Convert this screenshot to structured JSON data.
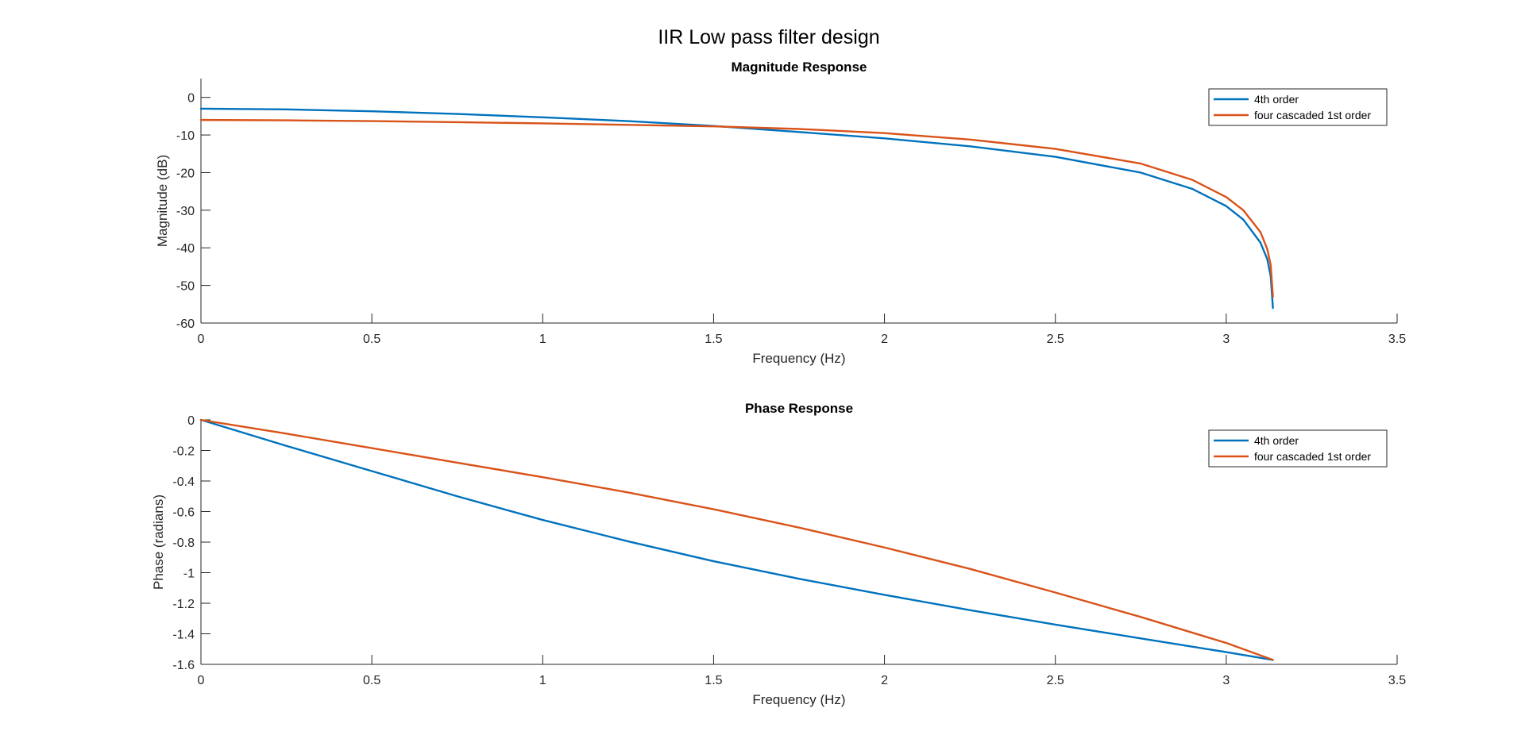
{
  "figure": {
    "title": "IIR Low pass filter design"
  },
  "colors": {
    "series1": "#0072BD",
    "series2": "#D95319"
  },
  "chart_data": [
    {
      "type": "line",
      "title": "Magnitude Response",
      "xlabel": "Frequency (Hz)",
      "ylabel": "Magnitude (dB)",
      "xlim": [
        0,
        3.5
      ],
      "ylim": [
        -60,
        5
      ],
      "xticks": [
        0,
        0.5,
        1,
        1.5,
        2,
        2.5,
        3,
        3.5
      ],
      "xtick_labels": [
        "0",
        "0.5",
        "1",
        "1.5",
        "2",
        "2.5",
        "3",
        "3.5"
      ],
      "yticks": [
        0,
        -10,
        -20,
        -30,
        -40,
        -50,
        -60
      ],
      "ytick_labels": [
        "0",
        "-10",
        "-20",
        "-30",
        "-40",
        "-50",
        "-60"
      ],
      "grid": false,
      "legend": "top-right",
      "series": [
        {
          "name": "4th order",
          "color": "#0072BD",
          "x": [
            0,
            0.25,
            0.5,
            0.75,
            1.0,
            1.25,
            1.5,
            1.75,
            2.0,
            2.25,
            2.5,
            2.75,
            2.9,
            3.0,
            3.05,
            3.1,
            3.12,
            3.13,
            3.1366
          ],
          "y": [
            -3.0,
            -3.2,
            -3.7,
            -4.4,
            -5.3,
            -6.3,
            -7.6,
            -9.2,
            -10.9,
            -13.0,
            -15.8,
            -20.0,
            -24.3,
            -28.9,
            -32.5,
            -38.6,
            -43.0,
            -47.5,
            -56.0
          ]
        },
        {
          "name": "four cascaded 1st order",
          "color": "#D95319",
          "x": [
            0,
            0.25,
            0.5,
            0.75,
            1.0,
            1.25,
            1.5,
            1.75,
            2.0,
            2.25,
            2.5,
            2.75,
            2.9,
            3.0,
            3.05,
            3.1,
            3.12,
            3.13,
            3.1366
          ],
          "y": [
            -6.0,
            -6.1,
            -6.3,
            -6.6,
            -6.9,
            -7.3,
            -7.7,
            -8.4,
            -9.5,
            -11.2,
            -13.7,
            -17.6,
            -21.9,
            -26.5,
            -30.0,
            -35.8,
            -40.3,
            -44.5,
            -53.0
          ]
        }
      ]
    },
    {
      "type": "line",
      "title": "Phase Response",
      "xlabel": "Frequency (Hz)",
      "ylabel": "Phase (radians)",
      "xlim": [
        0,
        3.5
      ],
      "ylim": [
        -1.6,
        0
      ],
      "xticks": [
        0,
        0.5,
        1,
        1.5,
        2,
        2.5,
        3,
        3.5
      ],
      "xtick_labels": [
        "0",
        "0.5",
        "1",
        "1.5",
        "2",
        "2.5",
        "3",
        "3.5"
      ],
      "yticks": [
        0,
        -0.2,
        -0.4,
        -0.6,
        -0.8,
        -1,
        -1.2,
        -1.4,
        -1.6
      ],
      "ytick_labels": [
        "0",
        "-0.2",
        "-0.4",
        "-0.6",
        "-0.8",
        "-1",
        "-1.2",
        "-1.4",
        "-1.6"
      ],
      "grid": false,
      "legend": "top-right",
      "series": [
        {
          "name": "4th order",
          "color": "#0072BD",
          "x": [
            0,
            0.25,
            0.5,
            0.75,
            1.0,
            1.25,
            1.5,
            1.75,
            2.0,
            2.25,
            2.5,
            2.75,
            3.0,
            3.1366
          ],
          "y": [
            0,
            -0.17,
            -0.335,
            -0.5,
            -0.655,
            -0.795,
            -0.925,
            -1.04,
            -1.145,
            -1.245,
            -1.34,
            -1.43,
            -1.52,
            -1.5708
          ]
        },
        {
          "name": "four cascaded 1st order",
          "color": "#D95319",
          "x": [
            0,
            0.25,
            0.5,
            0.75,
            1.0,
            1.25,
            1.5,
            1.75,
            2.0,
            2.25,
            2.5,
            2.75,
            3.0,
            3.1366
          ],
          "y": [
            0,
            -0.09,
            -0.185,
            -0.28,
            -0.375,
            -0.475,
            -0.585,
            -0.705,
            -0.835,
            -0.975,
            -1.13,
            -1.29,
            -1.46,
            -1.5708
          ]
        }
      ]
    }
  ]
}
